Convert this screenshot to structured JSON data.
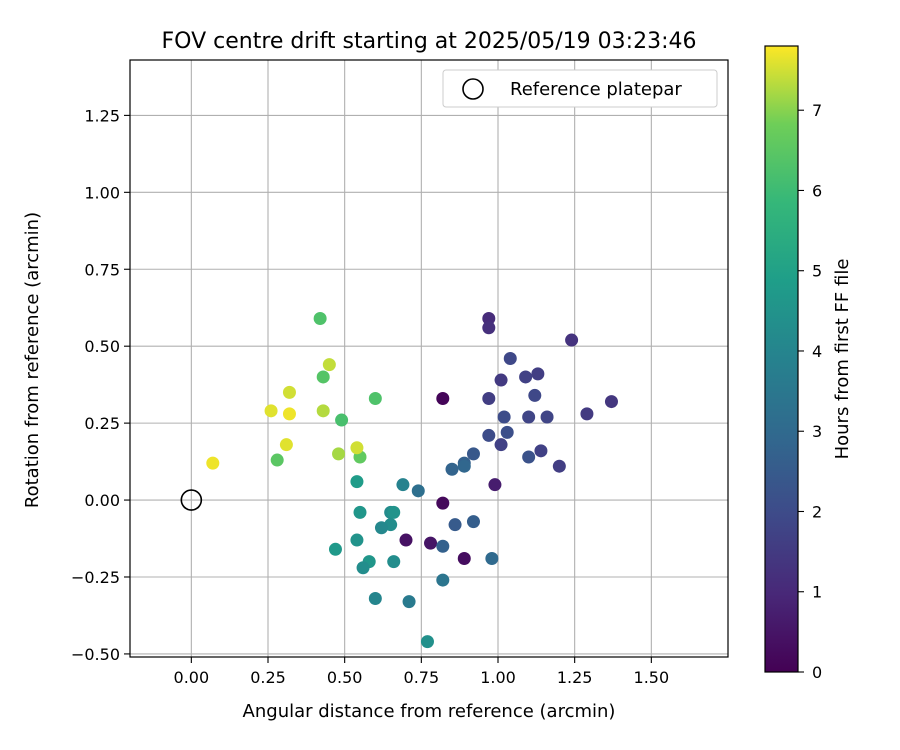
{
  "chart_data": {
    "type": "scatter",
    "title": "FOV centre drift starting at 2025/05/19 03:23:46",
    "xlabel": "Angular distance from reference (arcmin)",
    "ylabel": "Rotation from reference (arcmin)",
    "xlim": [
      -0.2,
      1.75
    ],
    "ylim": [
      -0.51,
      1.43
    ],
    "x_ticks": [
      "0.00",
      "0.25",
      "0.50",
      "0.75",
      "1.00",
      "1.25",
      "1.50"
    ],
    "y_ticks": [
      "−0.50",
      "−0.25",
      "0.00",
      "0.25",
      "0.50",
      "0.75",
      "1.00",
      "1.25"
    ],
    "grid": true,
    "legend": {
      "placement": "top-right",
      "label": "Reference platepar"
    },
    "reference_point": {
      "x": 0.0,
      "y": 0.0
    },
    "colorbar": {
      "label": "Hours from first FF file",
      "min": 0,
      "max": 7.8,
      "ticks": [
        "0",
        "1",
        "2",
        "3",
        "4",
        "5",
        "6",
        "7"
      ],
      "colormap": "viridis"
    },
    "series": [
      {
        "points": [
          {
            "x": 0.82,
            "y": 0.33,
            "t": 0.1
          },
          {
            "x": 0.82,
            "y": -0.01,
            "t": 0.2
          },
          {
            "x": 0.89,
            "y": -0.19,
            "t": 0.3
          },
          {
            "x": 0.7,
            "y": -0.13,
            "t": 0.4
          },
          {
            "x": 0.78,
            "y": -0.14,
            "t": 0.5
          },
          {
            "x": 0.99,
            "y": 0.05,
            "t": 0.7
          },
          {
            "x": 0.97,
            "y": 0.59,
            "t": 1.1
          },
          {
            "x": 0.97,
            "y": 0.56,
            "t": 1.2
          },
          {
            "x": 1.24,
            "y": 0.52,
            "t": 1.3
          },
          {
            "x": 1.37,
            "y": 0.32,
            "t": 1.4
          },
          {
            "x": 1.29,
            "y": 0.28,
            "t": 1.5
          },
          {
            "x": 1.2,
            "y": 0.11,
            "t": 1.6
          },
          {
            "x": 1.14,
            "y": 0.16,
            "t": 1.7
          },
          {
            "x": 1.16,
            "y": 0.27,
            "t": 1.8
          },
          {
            "x": 1.12,
            "y": 0.34,
            "t": 1.9
          },
          {
            "x": 1.13,
            "y": 0.41,
            "t": 1.6
          },
          {
            "x": 1.09,
            "y": 0.4,
            "t": 1.7
          },
          {
            "x": 1.04,
            "y": 0.46,
            "t": 1.9
          },
          {
            "x": 1.01,
            "y": 0.39,
            "t": 1.5
          },
          {
            "x": 0.97,
            "y": 0.33,
            "t": 1.6
          },
          {
            "x": 1.1,
            "y": 0.27,
            "t": 1.8
          },
          {
            "x": 1.02,
            "y": 0.27,
            "t": 2.0
          },
          {
            "x": 1.03,
            "y": 0.22,
            "t": 2.1
          },
          {
            "x": 1.01,
            "y": 0.18,
            "t": 1.7
          },
          {
            "x": 0.97,
            "y": 0.21,
            "t": 2.0
          },
          {
            "x": 1.1,
            "y": 0.14,
            "t": 2.2
          },
          {
            "x": 0.92,
            "y": 0.15,
            "t": 2.4
          },
          {
            "x": 0.89,
            "y": 0.12,
            "t": 2.7
          },
          {
            "x": 0.89,
            "y": 0.11,
            "t": 2.9
          },
          {
            "x": 0.85,
            "y": 0.1,
            "t": 2.8
          },
          {
            "x": 0.74,
            "y": 0.03,
            "t": 3.2
          },
          {
            "x": 0.92,
            "y": -0.07,
            "t": 2.6
          },
          {
            "x": 0.86,
            "y": -0.08,
            "t": 2.5
          },
          {
            "x": 0.82,
            "y": -0.15,
            "t": 2.7
          },
          {
            "x": 0.98,
            "y": -0.19,
            "t": 3.0
          },
          {
            "x": 0.82,
            "y": -0.26,
            "t": 3.4
          },
          {
            "x": 0.71,
            "y": -0.33,
            "t": 3.6
          },
          {
            "x": 0.69,
            "y": 0.05,
            "t": 3.9
          },
          {
            "x": 0.65,
            "y": -0.04,
            "t": 4.2
          },
          {
            "x": 0.66,
            "y": -0.04,
            "t": 4.5
          },
          {
            "x": 0.65,
            "y": -0.08,
            "t": 4.3
          },
          {
            "x": 0.62,
            "y": -0.09,
            "t": 4.1
          },
          {
            "x": 0.66,
            "y": -0.2,
            "t": 4.3
          },
          {
            "x": 0.6,
            "y": -0.32,
            "t": 4.0
          },
          {
            "x": 0.77,
            "y": -0.46,
            "t": 4.4
          },
          {
            "x": 0.58,
            "y": -0.2,
            "t": 4.6
          },
          {
            "x": 0.56,
            "y": -0.22,
            "t": 4.3
          },
          {
            "x": 0.54,
            "y": -0.13,
            "t": 4.5
          },
          {
            "x": 0.47,
            "y": -0.16,
            "t": 4.7
          },
          {
            "x": 0.55,
            "y": -0.04,
            "t": 4.6
          },
          {
            "x": 0.54,
            "y": 0.06,
            "t": 4.8
          },
          {
            "x": 0.6,
            "y": 0.33,
            "t": 6.3
          },
          {
            "x": 0.49,
            "y": 0.26,
            "t": 6.2
          },
          {
            "x": 0.55,
            "y": 0.14,
            "t": 6.6
          },
          {
            "x": 0.42,
            "y": 0.59,
            "t": 6.3
          },
          {
            "x": 0.43,
            "y": 0.4,
            "t": 6.4
          },
          {
            "x": 0.28,
            "y": 0.13,
            "t": 6.5
          },
          {
            "x": 0.45,
            "y": 0.44,
            "t": 7.4
          },
          {
            "x": 0.32,
            "y": 0.35,
            "t": 7.5
          },
          {
            "x": 0.43,
            "y": 0.29,
            "t": 7.3
          },
          {
            "x": 0.26,
            "y": 0.29,
            "t": 7.6
          },
          {
            "x": 0.32,
            "y": 0.28,
            "t": 7.7
          },
          {
            "x": 0.48,
            "y": 0.15,
            "t": 7.2
          },
          {
            "x": 0.54,
            "y": 0.17,
            "t": 7.5
          },
          {
            "x": 0.31,
            "y": 0.18,
            "t": 7.6
          },
          {
            "x": 0.07,
            "y": 0.12,
            "t": 7.7
          }
        ]
      }
    ]
  }
}
